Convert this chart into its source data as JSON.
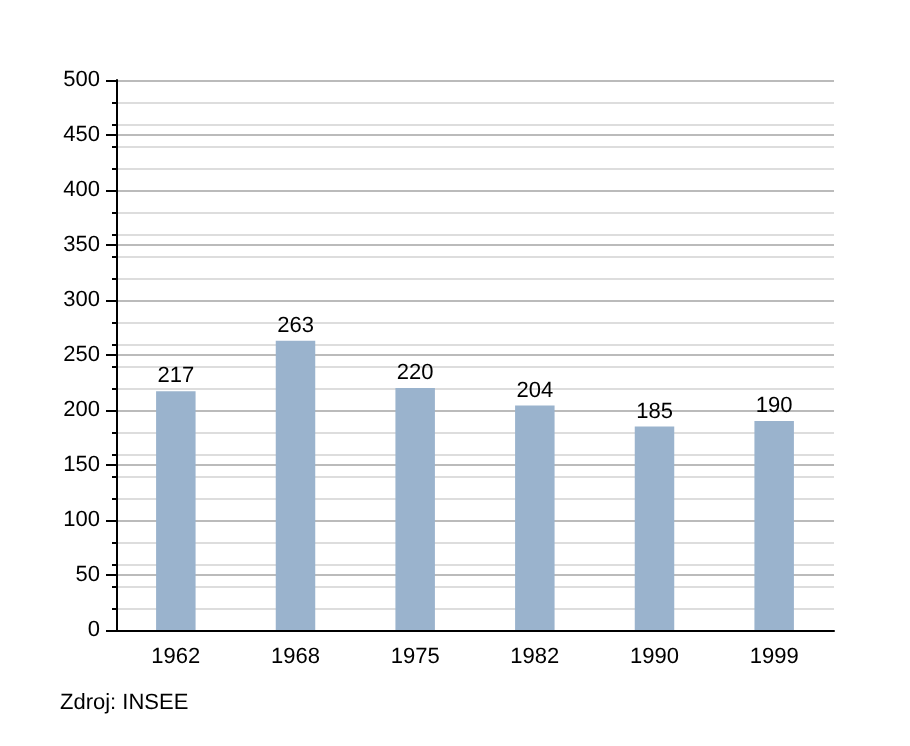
{
  "chart_data": {
    "type": "bar",
    "categories": [
      "1962",
      "1968",
      "1975",
      "1982",
      "1990",
      "1999"
    ],
    "values": [
      217,
      263,
      220,
      204,
      185,
      190
    ],
    "color": "#9ab3cd",
    "ylim": [
      0,
      500
    ],
    "yticks": [
      0,
      50,
      100,
      150,
      200,
      250,
      300,
      350,
      400,
      450,
      500
    ],
    "grid": "y",
    "data_labels": true,
    "annotations": [
      "Zdroj: INSEE"
    ]
  }
}
